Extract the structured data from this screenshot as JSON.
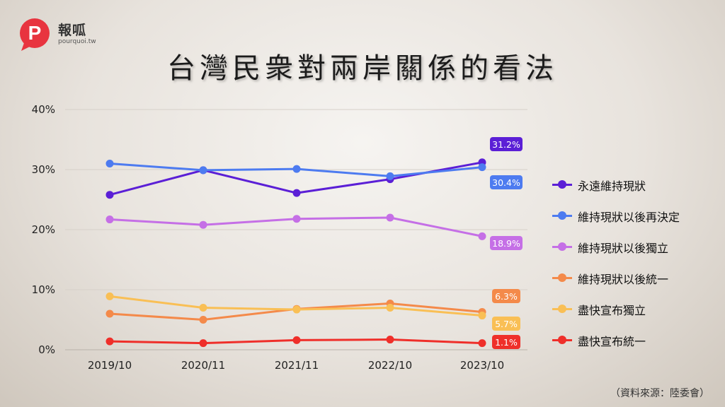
{
  "brand": {
    "name": "報呱",
    "url": "pourquoi.tw",
    "logo_letter": "P",
    "logo_color": "#e8343f"
  },
  "title": "台灣民衆對兩岸關係的看法",
  "source": "（資料來源：陸委會）",
  "chart_data": {
    "type": "line",
    "categories": [
      "2019/10",
      "2020/11",
      "2021/11",
      "2022/10",
      "2023/10"
    ],
    "ylim": [
      0,
      40
    ],
    "yticks": [
      "0%",
      "10%",
      "20%",
      "30%",
      "40%"
    ],
    "grid": true,
    "legend_position": "right",
    "series": [
      {
        "name": "永遠維持現狀",
        "color": "#5b1fd6",
        "values": [
          25.8,
          29.9,
          26.1,
          28.4,
          31.2
        ],
        "end_label": "31.2%"
      },
      {
        "name": "維持現狀以後再決定",
        "color": "#4d7bf0",
        "values": [
          31.0,
          29.9,
          30.1,
          28.9,
          30.4
        ],
        "end_label": "30.4%"
      },
      {
        "name": "維持現狀以後獨立",
        "color": "#c56fe6",
        "values": [
          21.7,
          20.8,
          21.8,
          22.0,
          18.9
        ],
        "end_label": "18.9%"
      },
      {
        "name": "維持現狀以後統一",
        "color": "#f48a4a",
        "values": [
          6.0,
          5.0,
          6.8,
          7.7,
          6.3
        ],
        "end_label": "6.3%"
      },
      {
        "name": "盡快宣布獨立",
        "color": "#f9bf55",
        "values": [
          8.9,
          7.0,
          6.7,
          7.0,
          5.7
        ],
        "end_label": "5.7%"
      },
      {
        "name": "盡快宣布統一",
        "color": "#ef2f2a",
        "values": [
          1.4,
          1.1,
          1.6,
          1.7,
          1.1
        ],
        "end_label": "1.1%"
      }
    ]
  }
}
